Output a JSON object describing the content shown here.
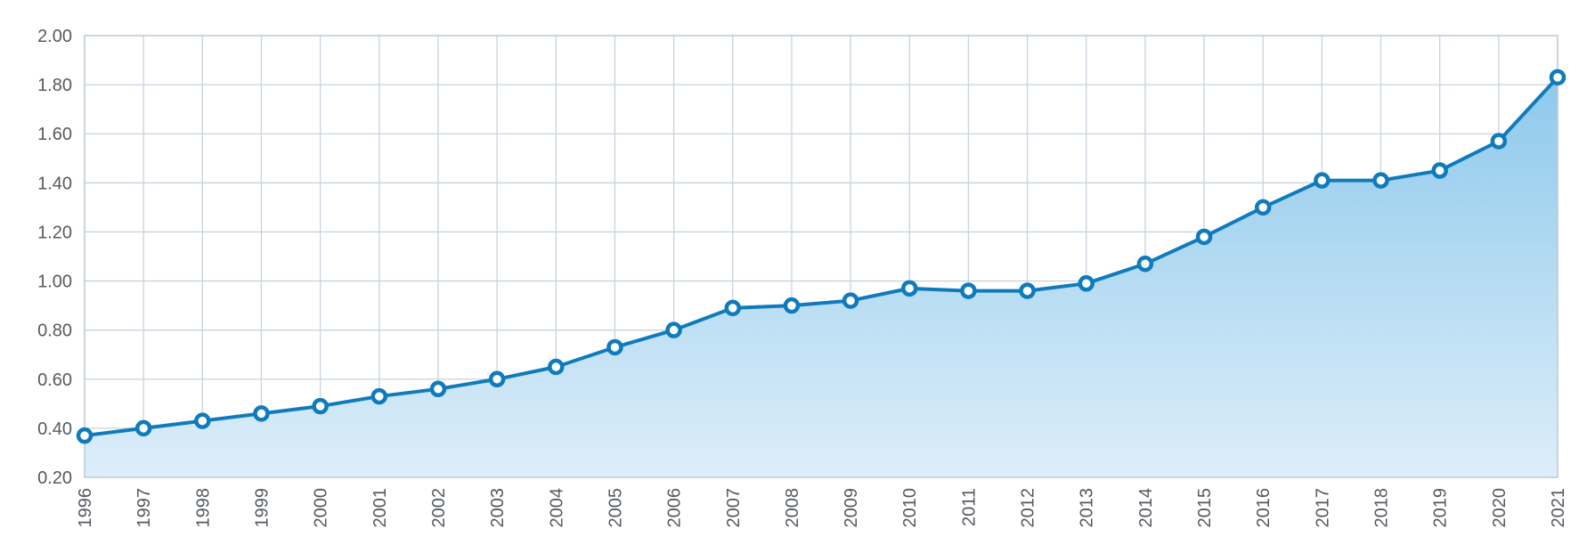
{
  "chart_data": {
    "type": "area",
    "title": "",
    "xlabel": "",
    "ylabel": "",
    "x": [
      "1996",
      "1997",
      "1998",
      "1999",
      "2000",
      "2001",
      "2002",
      "2003",
      "2004",
      "2005",
      "2006",
      "2007",
      "2008",
      "2009",
      "2010",
      "2011",
      "2012",
      "2013",
      "2014",
      "2015",
      "2016",
      "2017",
      "2018",
      "2019",
      "2020",
      "2021"
    ],
    "series": [
      {
        "values": [
          0.37,
          0.4,
          0.43,
          0.46,
          0.49,
          0.53,
          0.56,
          0.6,
          0.65,
          0.73,
          0.8,
          0.89,
          0.9,
          0.92,
          0.97,
          0.96,
          0.96,
          0.99,
          1.07,
          1.18,
          1.3,
          1.41,
          1.41,
          1.45,
          1.57,
          1.83
        ]
      }
    ],
    "ylim": [
      0.2,
      2.0
    ],
    "yticks": [
      "0.20",
      "0.40",
      "0.60",
      "0.80",
      "1.00",
      "1.20",
      "1.40",
      "1.60",
      "1.80",
      "2.00"
    ],
    "grid": true,
    "legend": "none",
    "colors": {
      "line": "#0f7bbd",
      "fill_top": "#8ec9ec",
      "fill_bottom": "#ddeef9",
      "grid": "#c9d3dd",
      "tick_text": "#555a60",
      "marker_fill": "#ffffff"
    }
  }
}
